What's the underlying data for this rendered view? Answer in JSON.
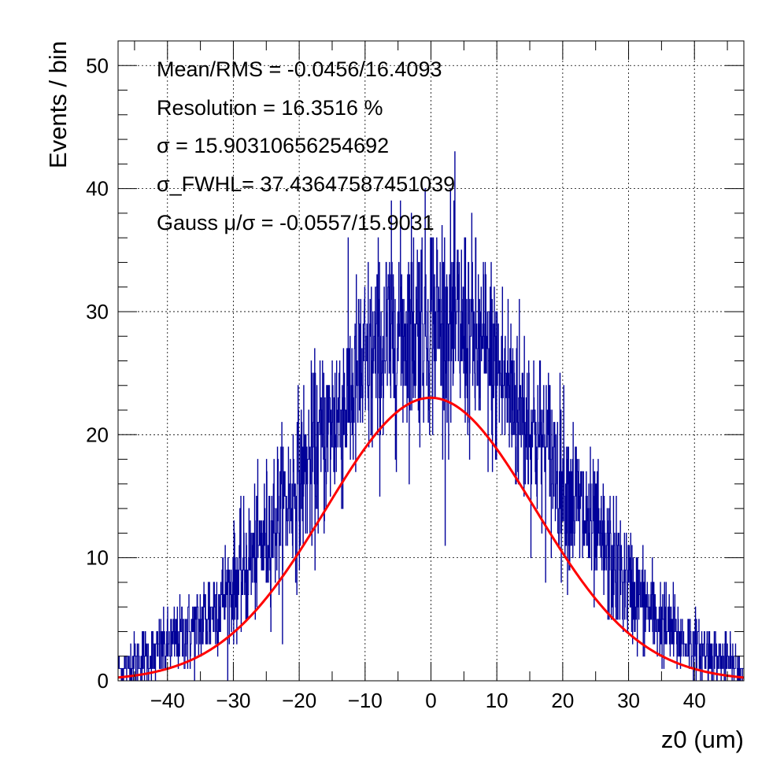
{
  "chart_data": {
    "type": "histogram",
    "xlabel": "z0 (um)",
    "ylabel": "Events / bin",
    "xlim": [
      -47.5,
      47.5
    ],
    "ylim": [
      0,
      52
    ],
    "grid": true,
    "x_ticks": [
      -40,
      -30,
      -20,
      -10,
      0,
      10,
      20,
      30,
      40
    ],
    "x_tick_labels": [
      "−40",
      "−30",
      "−20",
      "−10",
      "0",
      "10",
      "20",
      "30",
      "40"
    ],
    "y_ticks": [
      0,
      10,
      20,
      30,
      40,
      50
    ],
    "y_tick_labels": [
      "0",
      "10",
      "20",
      "30",
      "40",
      "50"
    ],
    "annotations": [
      "Mean/RMS = -0.0456/16.4093",
      "Resolution = 16.3516 %",
      "σ = 15.90310656254692",
      "σ_FWHL= 37.43647587451039",
      "Gauss μ/σ = -0.0557/15.9031"
    ],
    "series": [
      {
        "kind": "histogram",
        "color": "#000099",
        "envelope_x": [
          -47.5,
          -45,
          -40,
          -35,
          -30,
          -25,
          -20,
          -15,
          -10,
          -5,
          0,
          5,
          10,
          15,
          20,
          25,
          30,
          35,
          40,
          45,
          47.5
        ],
        "envelope_mean": [
          0.9,
          1.5,
          2.7,
          4.7,
          7.7,
          11.7,
          16.3,
          20.9,
          25.2,
          28.4,
          29.6,
          28.4,
          25.2,
          20.9,
          16.3,
          11.7,
          7.7,
          4.7,
          2.7,
          1.5,
          0.9
        ]
      },
      {
        "kind": "gaussian-fit",
        "color": "#ff0000",
        "amplitude": 23.0,
        "mu": -0.0557,
        "sigma": 15.9031
      }
    ]
  }
}
